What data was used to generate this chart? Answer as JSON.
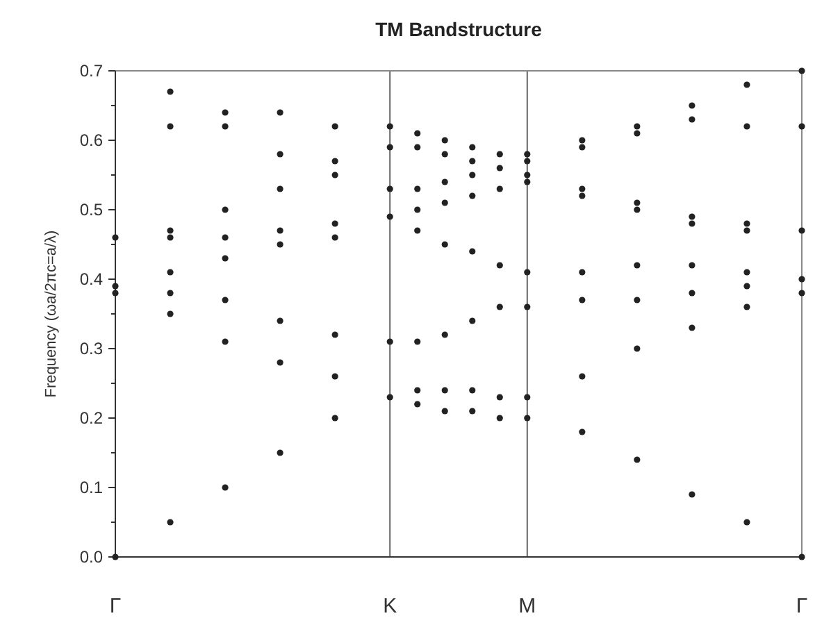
{
  "chart_data": {
    "type": "scatter",
    "title": "TM Bandstructure",
    "ylabel": "Frequency (ωa/2πc=a/λ)",
    "categories": [
      "Γ",
      null,
      null,
      null,
      null,
      null,
      null,
      null,
      null,
      null,
      "K",
      null,
      null,
      null,
      null,
      "M",
      null,
      null,
      null,
      null,
      null,
      null,
      null,
      null,
      null,
      "Γ"
    ],
    "ylim": [
      0,
      0.7
    ],
    "yticks": [
      {
        "value": 0,
        "label": "0.0"
      },
      {
        "value": 0.05,
        "label": null
      },
      {
        "value": 0.1,
        "label": "0.1"
      },
      {
        "value": 0.15,
        "label": null
      },
      {
        "value": 0.2,
        "label": "0.2"
      },
      {
        "value": 0.25,
        "label": null
      },
      {
        "value": 0.3,
        "label": "0.3"
      },
      {
        "value": 0.35,
        "label": null
      },
      {
        "value": 0.4,
        "label": "0.4"
      },
      {
        "value": 0.45,
        "label": null
      },
      {
        "value": 0.5,
        "label": "0.5"
      },
      {
        "value": 0.55,
        "label": null
      },
      {
        "value": 0.6,
        "label": "0.6"
      },
      {
        "value": 0.65,
        "label": null
      },
      {
        "value": 0.7,
        "label": "0.7"
      }
    ],
    "ref_lines": [
      {
        "axis": "x",
        "value": "K",
        "color": "#666666"
      },
      {
        "axis": "x",
        "value": "M",
        "color": "#666666"
      }
    ],
    "grid": false,
    "marker": "circle",
    "series": [
      {
        "color": "#222222",
        "values": [
          0,
          null,
          0.05,
          null,
          0.1,
          null,
          0.15,
          null,
          0.2,
          null,
          0.23,
          0.22,
          0.21,
          0.21,
          0.2,
          0.2,
          null,
          0.18,
          null,
          0.14,
          null,
          0.09,
          null,
          0.05,
          null,
          0
        ]
      },
      {
        "color": "#222222",
        "values": [
          0.38,
          null,
          0.35,
          null,
          0.31,
          null,
          0.28,
          null,
          0.26,
          null,
          0.31,
          0.24,
          0.24,
          0.24,
          0.23,
          0.23,
          null,
          0.26,
          null,
          0.3,
          null,
          0.33,
          null,
          0.36,
          null,
          0.38
        ]
      },
      {
        "color": "#222222",
        "values": [
          0.39,
          null,
          0.38,
          null,
          0.37,
          null,
          0.34,
          null,
          0.32,
          null,
          0.49,
          0.31,
          0.32,
          0.34,
          0.36,
          0.36,
          null,
          0.37,
          null,
          0.37,
          null,
          0.38,
          null,
          0.39,
          null,
          0.4
        ]
      },
      {
        "color": "#222222",
        "values": [
          0.46,
          null,
          0.41,
          null,
          0.43,
          null,
          0.45,
          null,
          0.46,
          null,
          0.53,
          0.47,
          0.45,
          0.44,
          0.42,
          0.41,
          null,
          0.41,
          null,
          0.42,
          null,
          0.42,
          null,
          0.41,
          null,
          0.47
        ]
      },
      {
        "color": "#222222",
        "values": [
          null,
          null,
          0.46,
          null,
          0.46,
          null,
          0.47,
          null,
          0.48,
          null,
          0.59,
          0.5,
          0.51,
          0.52,
          0.53,
          0.54,
          null,
          0.52,
          null,
          0.5,
          null,
          0.48,
          null,
          0.47,
          null,
          0.62
        ]
      },
      {
        "color": "#222222",
        "values": [
          null,
          null,
          0.47,
          null,
          0.5,
          null,
          0.53,
          null,
          0.55,
          null,
          0.62,
          0.53,
          0.54,
          0.55,
          0.56,
          0.55,
          null,
          0.53,
          null,
          0.51,
          null,
          0.49,
          null,
          0.48,
          null,
          0.7
        ]
      },
      {
        "color": "#222222",
        "values": [
          null,
          null,
          0.62,
          null,
          0.62,
          null,
          0.58,
          null,
          0.57,
          null,
          null,
          0.59,
          0.58,
          0.57,
          0.58,
          0.57,
          null,
          0.59,
          null,
          0.61,
          null,
          0.63,
          null,
          0.62,
          null,
          null
        ]
      },
      {
        "color": "#222222",
        "values": [
          null,
          null,
          0.67,
          null,
          0.64,
          null,
          0.64,
          null,
          0.62,
          null,
          null,
          0.61,
          0.6,
          0.59,
          null,
          0.58,
          null,
          0.6,
          null,
          0.62,
          null,
          0.65,
          null,
          0.68,
          null,
          null
        ]
      }
    ]
  }
}
